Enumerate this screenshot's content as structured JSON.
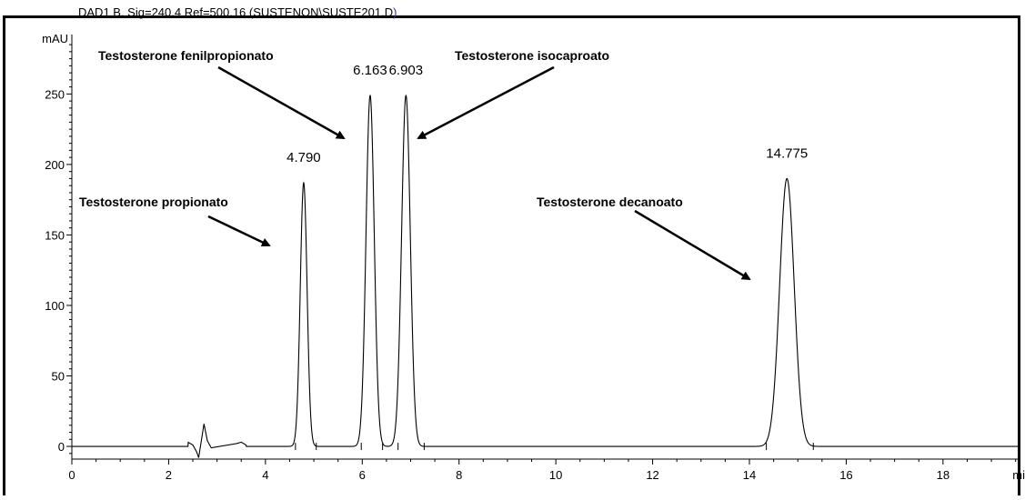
{
  "header": {
    "signal": "DAD1 B, Sig=240,4 Ref=500,16 (SUSTENON\\SUSTE201.D",
    "close_paren": ")"
  },
  "colors": {
    "trace": "#000000",
    "axis": "#000000",
    "header_paren": "#2a2adf"
  },
  "chart_data": {
    "type": "line",
    "title": "DAD1 B, Sig=240,4 Ref=500,16 (SUSTENON\\SUSTE201.D)",
    "xlabel": "mi",
    "ylabel": "mAU",
    "xlim": [
      0,
      19.6
    ],
    "ylim": [
      -9,
      287
    ],
    "xticks": [
      0,
      2,
      4,
      6,
      8,
      10,
      12,
      14,
      16,
      18
    ],
    "yticks": [
      0,
      50,
      100,
      150,
      200,
      250
    ],
    "grid": false,
    "peaks": [
      {
        "rt": 4.79,
        "label": "4.790",
        "height": 187,
        "width": 0.07,
        "start": 4.62,
        "end": 5.05
      },
      {
        "rt": 6.163,
        "label": "6.163",
        "height": 249,
        "width": 0.085,
        "start": 5.98,
        "end": 6.42
      },
      {
        "rt": 6.903,
        "label": "6.903",
        "height": 249,
        "width": 0.09,
        "start": 6.74,
        "end": 7.28
      },
      {
        "rt": 14.775,
        "label": "14.775",
        "height": 190,
        "width": 0.15,
        "start": 14.35,
        "end": 15.32
      }
    ],
    "baseline_noise": [
      {
        "x": 2.4,
        "y": 3
      },
      {
        "x": 2.5,
        "y": 1
      },
      {
        "x": 2.58,
        "y": -4
      },
      {
        "x": 2.62,
        "y": -8
      },
      {
        "x": 2.68,
        "y": 5
      },
      {
        "x": 2.73,
        "y": 16
      },
      {
        "x": 2.8,
        "y": 4
      },
      {
        "x": 2.88,
        "y": -1
      },
      {
        "x": 3.4,
        "y": 2
      },
      {
        "x": 3.5,
        "y": 3
      },
      {
        "x": 3.6,
        "y": 1
      }
    ],
    "annotations": [
      {
        "text": "Testosterone propionato",
        "points_to": 4.0
      },
      {
        "text": "Testosterone fenilpropionato",
        "points_to": 5.8
      },
      {
        "text": "Testosterone isocaproato",
        "points_to": 7.2
      },
      {
        "text": "Testosterone decanoato",
        "points_to": 14.3
      }
    ]
  }
}
